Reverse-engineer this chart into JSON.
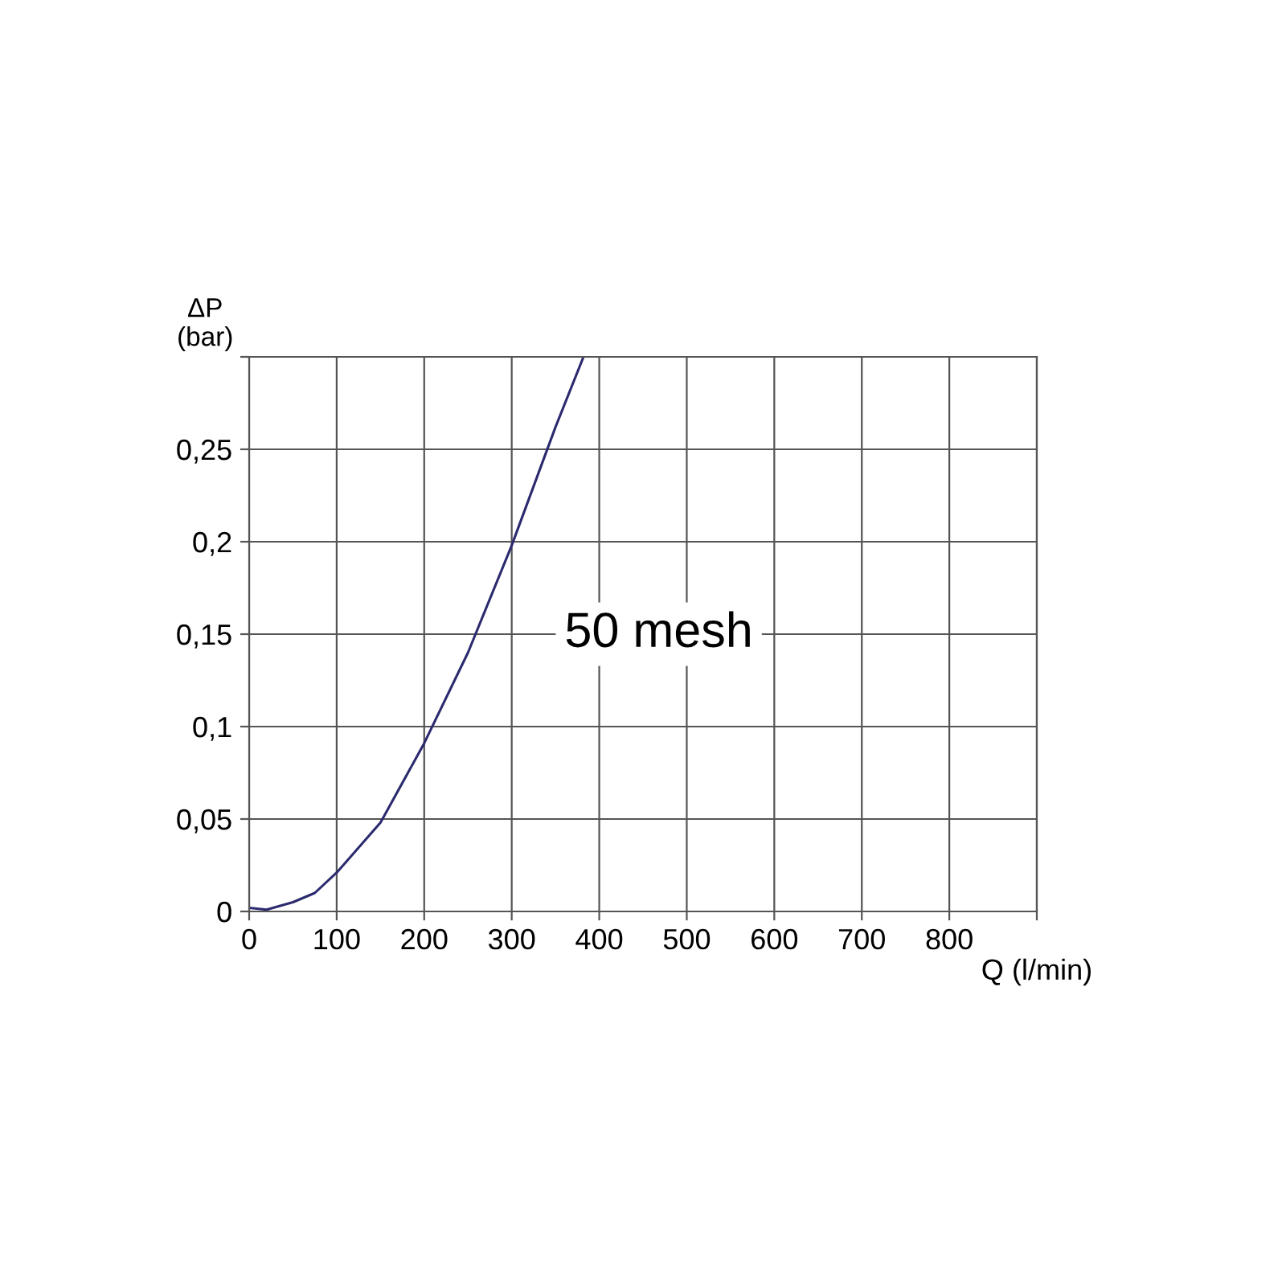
{
  "chart_data": {
    "type": "line",
    "xlabel": "Q (l/min)",
    "ylabel": "ΔP\n(bar)",
    "x": [
      0,
      20,
      50,
      75,
      100,
      150,
      200,
      250,
      300,
      350,
      382
    ],
    "series": [
      {
        "color": "#2b2a6e",
        "values": [
          0.002,
          0.001,
          0.005,
          0.01,
          0.021,
          0.048,
          0.091,
          0.14,
          0.198,
          0.262,
          0.3
        ]
      }
    ],
    "xlim": [
      0,
      900
    ],
    "ylim": [
      0,
      0.3
    ],
    "xticks": [
      0,
      100,
      200,
      300,
      400,
      500,
      600,
      700,
      800,
      {
        "value": 900,
        "label": null
      }
    ],
    "yticks": [
      {
        "value": 0,
        "label": "0"
      },
      {
        "value": 0.05,
        "label": "0,05"
      },
      {
        "value": 0.1,
        "label": "0,1"
      },
      {
        "value": 0.15,
        "label": "0,15"
      },
      {
        "value": 0.2,
        "label": "0,2"
      },
      {
        "value": 0.25,
        "label": "0,25"
      },
      {
        "value": 0.3,
        "label": null
      }
    ],
    "annotations": [
      "50 mesh"
    ],
    "grid": true,
    "marker": "none",
    "line_style": "solid"
  }
}
